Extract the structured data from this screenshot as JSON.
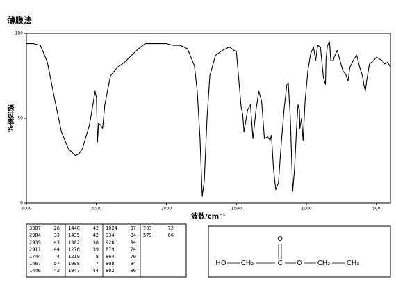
{
  "chart_data": {
    "type": "line",
    "title": "薄膜法",
    "x_label": "波数/cm⁻¹",
    "y_label": "透过率%",
    "xlim": [
      4000,
      400
    ],
    "x_split": 2000,
    "x_split_compression": 2,
    "xticks": [
      4000,
      3000,
      2000,
      1500,
      1000,
      500
    ],
    "ylim": [
      0,
      100
    ],
    "yticks": [
      0,
      50,
      100
    ],
    "x": [
      4000,
      3900,
      3800,
      3700,
      3600,
      3500,
      3400,
      3300,
      3250,
      3200,
      3100,
      3050,
      3020,
      3000,
      2985,
      2970,
      2939,
      2911,
      2880,
      2800,
      2700,
      2600,
      2500,
      2400,
      2300,
      2200,
      2100,
      2000,
      1950,
      1900,
      1850,
      1800,
      1780,
      1760,
      1744,
      1730,
      1710,
      1690,
      1650,
      1600,
      1550,
      1500,
      1480,
      1467,
      1455,
      1446,
      1420,
      1400,
      1382,
      1360,
      1340,
      1320,
      1300,
      1276,
      1260,
      1250,
      1235,
      1219,
      1200,
      1180,
      1160,
      1140,
      1130,
      1115,
      1098,
      1085,
      1070,
      1060,
      1050,
      1047,
      1035,
      1024,
      1010,
      990,
      970,
      950,
      934,
      920,
      900,
      879,
      864,
      860,
      850,
      835,
      826,
      808,
      802,
      780,
      760,
      740,
      720,
      703,
      690,
      660,
      640,
      620,
      600,
      590,
      579,
      570,
      550,
      520,
      500,
      480,
      460,
      440,
      420,
      400
    ],
    "series": [
      {
        "color": "#000000",
        "values": [
          94,
          94,
          93,
          83,
          62,
          42,
          32,
          28,
          29,
          32,
          46,
          58,
          66,
          62,
          36,
          47,
          46,
          44,
          58,
          75,
          80,
          83,
          87,
          91,
          94,
          94,
          94,
          94,
          93,
          93,
          91,
          81,
          66,
          38,
          4,
          13,
          50,
          75,
          87,
          90,
          92,
          89,
          70,
          57,
          52,
          42,
          55,
          58,
          38,
          55,
          66,
          60,
          38,
          39,
          37,
          40,
          20,
          8,
          12,
          35,
          55,
          70,
          71,
          50,
          7,
          20,
          45,
          58,
          55,
          44,
          50,
          37,
          60,
          78,
          88,
          92,
          84,
          93,
          92,
          74,
          70,
          85,
          93,
          95,
          84,
          84,
          86,
          90,
          84,
          78,
          76,
          72,
          80,
          85,
          87,
          80,
          75,
          70,
          66,
          72,
          82,
          84,
          86,
          85,
          84,
          82,
          83,
          80
        ]
      }
    ]
  },
  "peak_table": {
    "columns": [
      [
        [
          "3387",
          "26"
        ],
        [
          "2984",
          "33"
        ],
        [
          "2939",
          "43"
        ],
        [
          "2911",
          "44"
        ],
        [
          "1744",
          "4"
        ],
        [
          "1467",
          "57"
        ],
        [
          "1446",
          "42"
        ]
      ],
      [
        [
          "1440",
          "42"
        ],
        [
          "1435",
          "42"
        ],
        [
          "1382",
          "38"
        ],
        [
          "1276",
          "39"
        ],
        [
          "1219",
          "8"
        ],
        [
          "1098",
          "7"
        ],
        [
          "1047",
          "44"
        ]
      ],
      [
        [
          "1024",
          "37"
        ],
        [
          "934",
          "84"
        ],
        [
          "926",
          "84"
        ],
        [
          "879",
          "74"
        ],
        [
          "864",
          "70"
        ],
        [
          "808",
          "84"
        ],
        [
          "802",
          "86"
        ]
      ],
      [
        [
          "703",
          "72"
        ],
        [
          "579",
          "66"
        ]
      ]
    ]
  },
  "structure": {
    "atoms": [
      "HO",
      "CH₂",
      "C",
      "O",
      "O",
      "CH₂",
      "CH₃"
    ]
  }
}
